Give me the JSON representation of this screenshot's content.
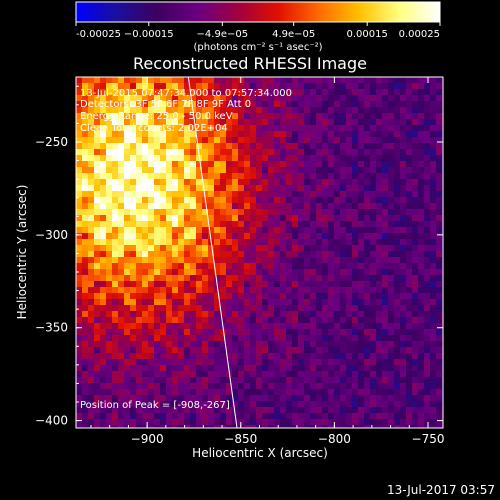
{
  "chart_data": {
    "type": "heatmap",
    "title": "Reconstructed RHESSI Image",
    "xlabel": "Heliocentric X (arcsec)",
    "ylabel": "Heliocentric Y (arcsec)",
    "xlim": [
      -938,
      -742
    ],
    "ylim": [
      -404,
      -215
    ],
    "x_ticks": [
      -900,
      -850,
      -800,
      -750
    ],
    "y_ticks": [
      -400,
      -350,
      -300,
      -250
    ],
    "x_tick_labels": [
      "−900",
      "−850",
      "−800",
      "−750"
    ],
    "y_tick_labels": [
      "−400",
      "−350",
      "−300",
      "−250"
    ],
    "colorbar": {
      "range": [
        -0.00025,
        0.00025
      ],
      "tick_labels": [
        "-0.00025",
        "−0.00015",
        "−4.9e−05",
        "4.9e−05",
        "0.00015",
        "0.00025"
      ],
      "units": "(photons cm⁻² s⁻¹ asec⁻²)",
      "colormap": [
        "#0000ff",
        "#1b0f9e",
        "#3d0060",
        "#6a0080",
        "#a00040",
        "#e01000",
        "#ff6a00",
        "#ffc000",
        "#ffff80",
        "#ffffff"
      ]
    },
    "annotations": [
      "13-Jul-2015 07:47:34.000 to 07:57:34.000",
      "Detectors: 3F 5F 6F 7F 8F 9F  Att 0",
      "Energy Range: 25.0 - 50.0 keV",
      "Clean     Total counts: 2.02E+04"
    ],
    "peak_label": "Position of Peak = [-908,-267]",
    "peak": {
      "x": -908,
      "y": -267
    },
    "limb_line": [
      [
        -878,
        -215
      ],
      [
        -852,
        -404
      ]
    ],
    "grid": false
  },
  "footer": {
    "timestamp": "13-Jul-2017 03:57"
  }
}
